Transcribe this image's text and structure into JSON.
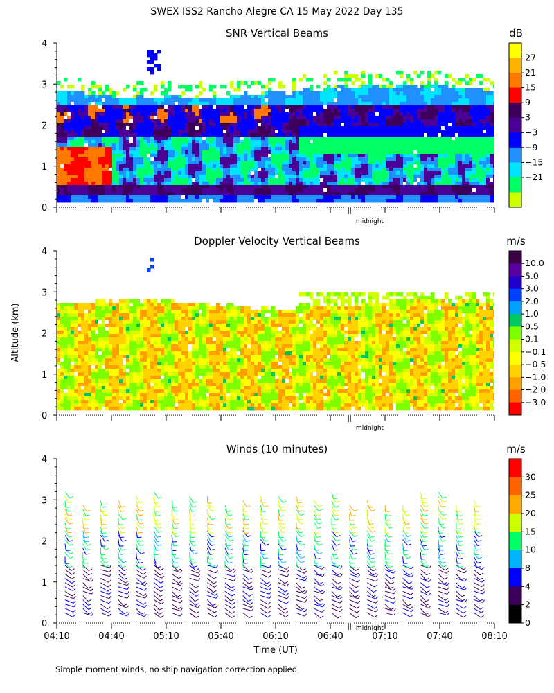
{
  "title": "SWEX ISS2 Rancho Alegre CA  15 May 2022 Day 135",
  "ylabel": "Altitude (km)",
  "xlabel": "Time (UT)",
  "x_ticks": [
    "04:10",
    "04:40",
    "05:10",
    "05:40",
    "06:10",
    "06:40",
    "07:10",
    "07:40",
    "08:10"
  ],
  "midnight_label": "midnight",
  "footnote": "Simple moment winds, no ship navigation correction applied",
  "chart_data": [
    {
      "type": "heatmap",
      "title": "SNR Vertical Beams",
      "units": "dB",
      "ylim": [
        0,
        4
      ],
      "y_ticks": [
        "0",
        "1",
        "2",
        "3",
        "4"
      ],
      "xlim": [
        "04:10",
        "08:10"
      ],
      "colorbar": {
        "labels": [
          "27",
          "21",
          "15",
          "9",
          "3",
          "−3",
          "−9",
          "−15",
          "−21"
        ],
        "colors": [
          "#ffff00",
          "#ffb400",
          "#ff7800",
          "#ff0000",
          "#3c005a",
          "#4b0096",
          "#0000ff",
          "#1e90ff",
          "#00e5ff",
          "#00ff66",
          "#ccff00"
        ]
      },
      "observations": {
        "strong_band_km": [
          1.8,
          2.6
        ],
        "weak_top_km": 3.0,
        "surface_layer_km": [
          0.2,
          0.6
        ]
      }
    },
    {
      "type": "heatmap",
      "title": "Doppler Velocity Vertical Beams",
      "units": "m/s",
      "ylim": [
        0,
        4
      ],
      "y_ticks": [
        "0",
        "1",
        "2",
        "3",
        "4"
      ],
      "xlim": [
        "04:10",
        "08:10"
      ],
      "colorbar": {
        "labels": [
          "10.0",
          "5.0",
          "3.0",
          "2.0",
          "1.0",
          "0.5",
          "0.1",
          "−0.1",
          "−0.5",
          "−1.0",
          "−2.0",
          "−3.0"
        ],
        "colors": [
          "#3c0046",
          "#5a00a0",
          "#2000d0",
          "#0040ff",
          "#00a0ff",
          "#00c85a",
          "#7dff00",
          "#d2ff00",
          "#ffff00",
          "#ffd200",
          "#ffa000",
          "#ff6400",
          "#ff0000"
        ]
      },
      "observations": {
        "data_top_km": 2.8,
        "dominant_range_m_s": [
          -1.0,
          -0.1
        ]
      }
    },
    {
      "type": "scatter",
      "title": "Winds (10 minutes)",
      "units": "m/s",
      "ylim": [
        0,
        4
      ],
      "y_ticks": [
        "0",
        "1",
        "2",
        "3",
        "4"
      ],
      "xlim": [
        "04:10",
        "08:10"
      ],
      "colorbar": {
        "labels": [
          "30",
          "25",
          "20",
          "15",
          "10",
          "8",
          "4",
          "2",
          "0"
        ],
        "colors": [
          "#ff0000",
          "#ff6400",
          "#ffaa00",
          "#ccff00",
          "#00ff66",
          "#00b4ff",
          "#0000ff",
          "#3c005a",
          "#000000"
        ]
      },
      "observations": {
        "profile_interval_min": 10,
        "low_level_speed_m_s": [
          2,
          8
        ],
        "upper_level_speed_m_s": [
          15,
          25
        ]
      }
    }
  ]
}
